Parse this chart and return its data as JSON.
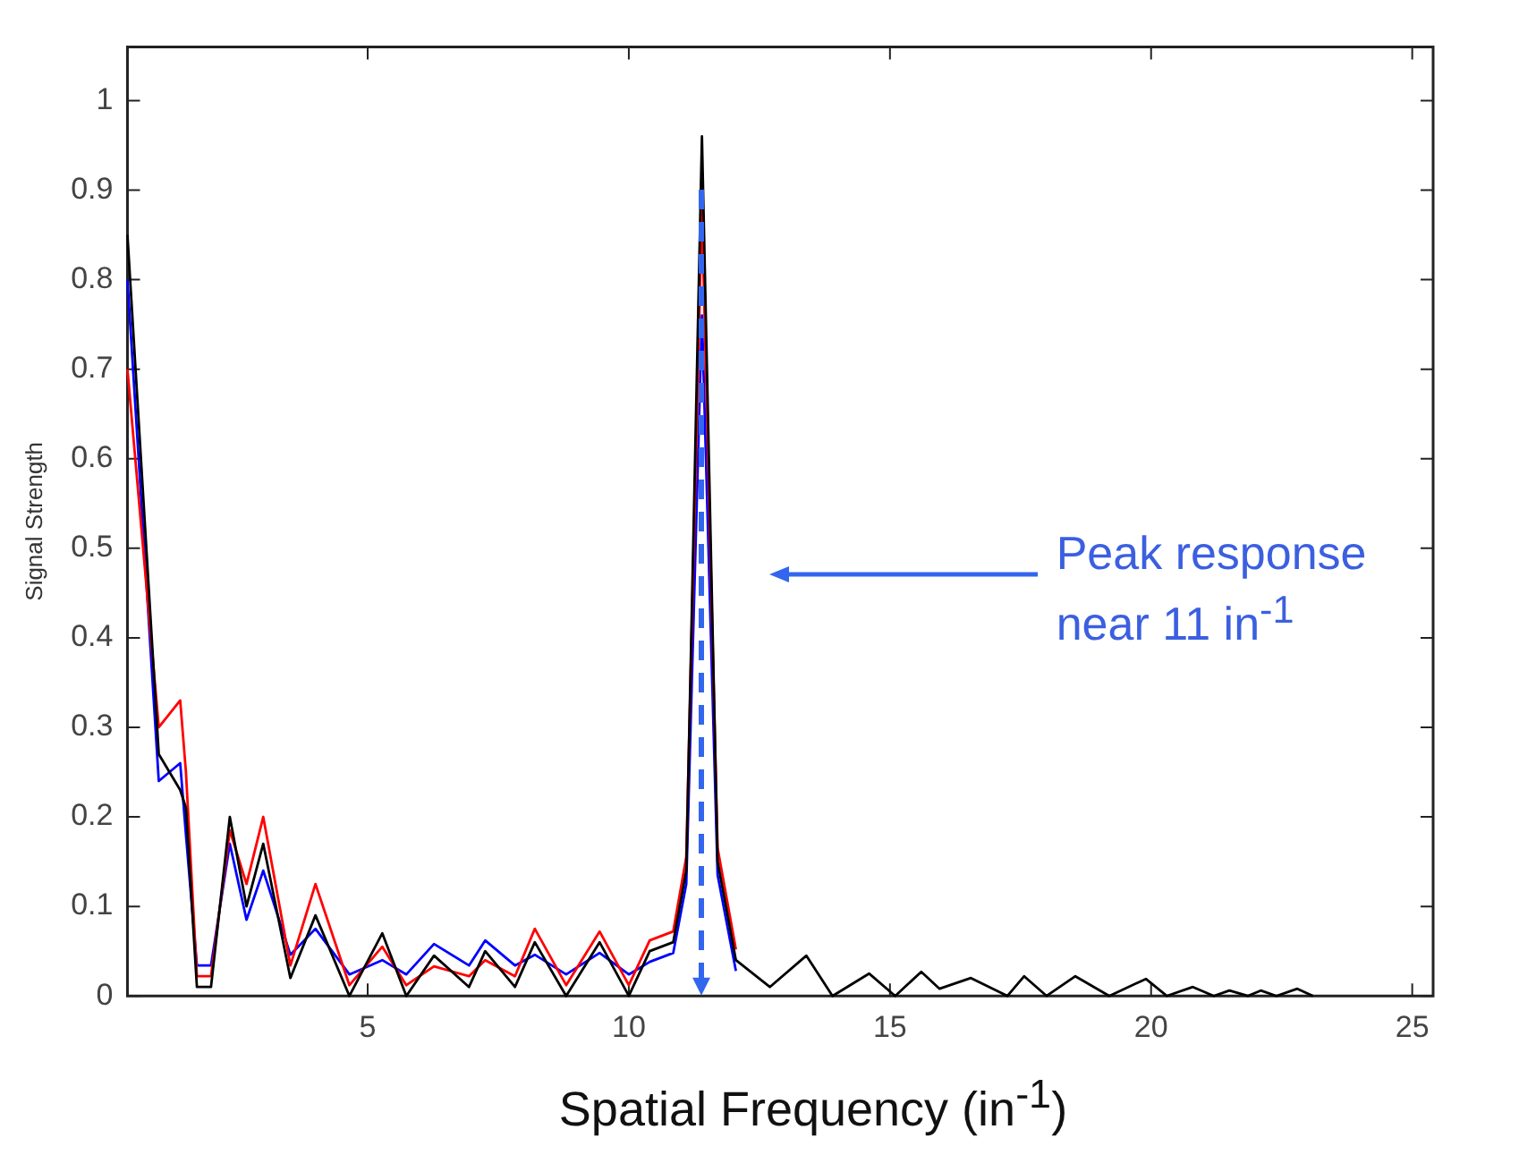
{
  "chart_data": {
    "type": "line",
    "xlabel": "Spatial Frequency (in$^{-1}$)",
    "ylabel": "Signal Strength",
    "x": [
      0.4,
      1.0,
      1.41,
      1.52,
      1.73,
      2.0,
      2.36,
      2.68,
      3.0,
      3.52,
      4.0,
      4.65,
      5.28,
      5.74,
      6.27,
      6.94,
      7.25,
      7.82,
      8.2,
      8.8,
      9.44,
      10.0,
      10.4,
      10.85,
      11.1,
      11.4,
      11.7,
      12.05,
      12.7,
      13.4,
      13.9,
      14.6,
      15.1,
      15.6,
      15.95,
      16.55,
      17.25,
      17.57,
      18.0,
      18.55,
      19.2,
      19.9,
      20.3,
      20.8,
      21.2,
      21.5,
      21.85,
      22.1,
      22.4,
      22.8,
      23.1
    ],
    "series": [
      {
        "color": "#000000",
        "values": [
          0.85,
          0.27,
          0.23,
          0.21,
          0.01,
          0.01,
          0.2,
          0.1,
          0.17,
          0.02,
          0.09,
          0.0,
          0.07,
          0.0,
          0.045,
          0.01,
          0.05,
          0.01,
          0.06,
          0.0,
          0.06,
          0.0,
          0.05,
          0.06,
          0.14,
          0.96,
          0.15,
          0.04,
          0.01,
          0.045,
          0.0,
          0.025,
          0.0,
          0.027,
          0.008,
          0.02,
          0.0,
          0.022,
          0.0,
          0.022,
          0.0,
          0.019,
          0.0,
          0.01,
          0.0,
          0.006,
          0.0,
          0.006,
          0.0,
          0.008,
          0.0
        ]
      },
      {
        "color": "#ff0000",
        "x": [
          0.4,
          1.0,
          1.41,
          1.52,
          1.73,
          2.0,
          2.36,
          2.68,
          3.0,
          3.52,
          4.0,
          4.65,
          5.28,
          5.74,
          6.27,
          6.94,
          7.25,
          7.82,
          8.2,
          8.8,
          9.44,
          10.0,
          10.4,
          10.85,
          11.1,
          11.4,
          11.7,
          12.05
        ],
        "values": [
          0.7,
          0.3,
          0.33,
          0.25,
          0.022,
          0.022,
          0.185,
          0.125,
          0.2,
          0.034,
          0.125,
          0.012,
          0.055,
          0.012,
          0.033,
          0.022,
          0.04,
          0.022,
          0.075,
          0.012,
          0.072,
          0.012,
          0.062,
          0.072,
          0.155,
          0.88,
          0.165,
          0.052
        ]
      },
      {
        "color": "#0000ff",
        "x": [
          0.4,
          1.0,
          1.41,
          1.52,
          1.73,
          2.0,
          2.36,
          2.68,
          3.0,
          3.52,
          4.0,
          4.65,
          5.28,
          5.74,
          6.27,
          6.94,
          7.25,
          7.82,
          8.2,
          8.8,
          9.44,
          10.0,
          10.4,
          10.85,
          11.1,
          11.4,
          11.7,
          12.05
        ],
        "values": [
          0.8,
          0.24,
          0.26,
          0.18,
          0.034,
          0.034,
          0.17,
          0.085,
          0.14,
          0.046,
          0.075,
          0.024,
          0.04,
          0.024,
          0.058,
          0.034,
          0.062,
          0.034,
          0.046,
          0.024,
          0.048,
          0.024,
          0.038,
          0.048,
          0.125,
          0.76,
          0.135,
          0.028
        ]
      }
    ],
    "xlim": [
      0.4,
      25.4
    ],
    "ylim": [
      0,
      1.06
    ],
    "xticks": [
      5,
      10,
      15,
      20,
      25
    ],
    "yticks": [
      0,
      0.1,
      0.2,
      0.3,
      0.4,
      0.5,
      0.6,
      0.7,
      0.8,
      0.9,
      1
    ],
    "grid": false,
    "legend": false,
    "marker": "none",
    "line_style": "solid",
    "annotations": [
      "Peak response near 11 in$^{-1}$"
    ]
  }
}
